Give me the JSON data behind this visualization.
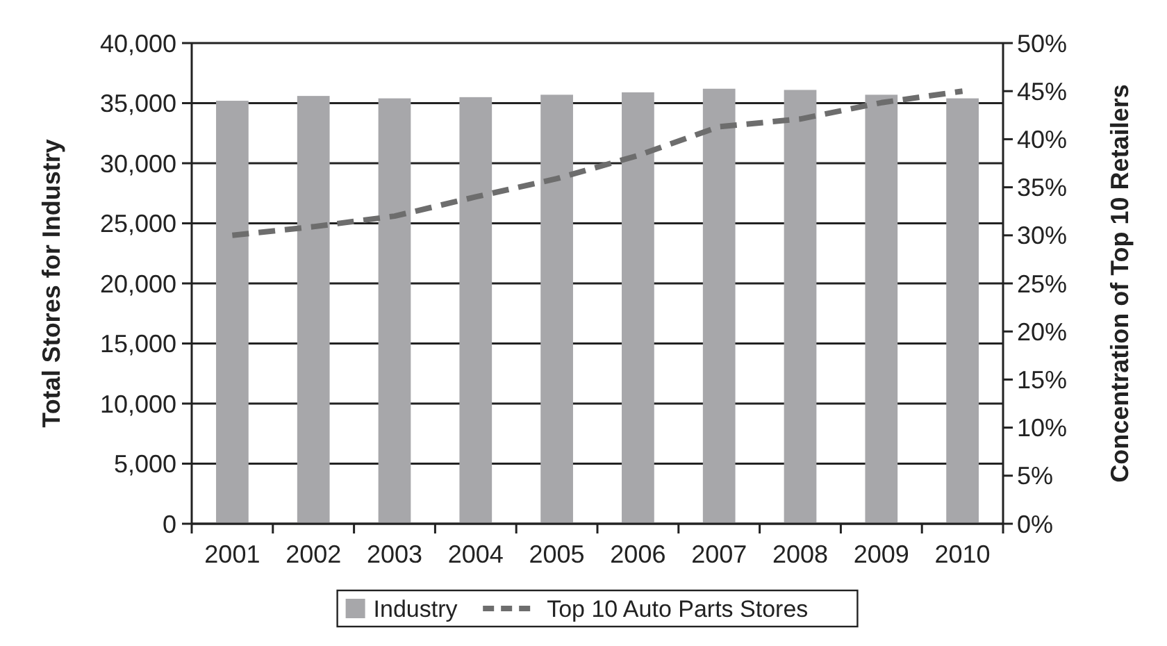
{
  "chart_data": {
    "type": "bar",
    "xlabel": null,
    "ylabel": "Total Stores for Industry",
    "y2label": "Concentration of Top 10 Retailers",
    "categories": [
      "2001",
      "2002",
      "2003",
      "2004",
      "2005",
      "2006",
      "2007",
      "2008",
      "2009",
      "2010"
    ],
    "series": [
      {
        "name": "Industry",
        "color": "#a7a7aa",
        "values": [
          35200,
          35600,
          35400,
          35500,
          35700,
          35900,
          36200,
          36100,
          35700,
          35400
        ]
      },
      {
        "name": "Top 10 Auto Parts Stores",
        "type": "line",
        "axis": "y2",
        "color": "#6d6d6d",
        "line_style": "dashed",
        "values": [
          30,
          30.9,
          32,
          34,
          35.9,
          38.3,
          41.3,
          42.1,
          43.8,
          45
        ]
      }
    ],
    "ylim": [
      0,
      40000
    ],
    "yticks": [
      {
        "value": 0,
        "label": "0"
      },
      {
        "value": 5000,
        "label": "5,000"
      },
      {
        "value": 10000,
        "label": "10,000"
      },
      {
        "value": 15000,
        "label": "15,000"
      },
      {
        "value": 20000,
        "label": "20,000"
      },
      {
        "value": 25000,
        "label": "25,000"
      },
      {
        "value": 30000,
        "label": "30,000"
      },
      {
        "value": 35000,
        "label": "35,000"
      },
      {
        "value": 40000,
        "label": "40,000"
      }
    ],
    "y2lim": [
      0,
      50
    ],
    "y2ticks": [
      {
        "value": 0,
        "label": "0%"
      },
      {
        "value": 5,
        "label": "5%"
      },
      {
        "value": 10,
        "label": "10%"
      },
      {
        "value": 15,
        "label": "15%"
      },
      {
        "value": 20,
        "label": "20%"
      },
      {
        "value": 25,
        "label": "25%"
      },
      {
        "value": 30,
        "label": "30%"
      },
      {
        "value": 35,
        "label": "35%"
      },
      {
        "value": 40,
        "label": "40%"
      },
      {
        "value": 45,
        "label": "45%"
      },
      {
        "value": 50,
        "label": "50%"
      }
    ],
    "grid": "y",
    "legend": "bottom"
  }
}
